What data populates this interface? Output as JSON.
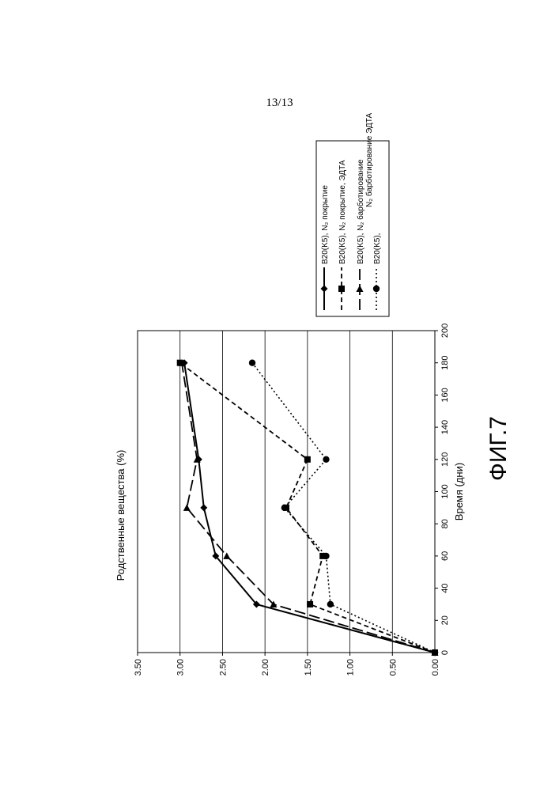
{
  "page_number": "13/13",
  "figure_label": "ФИГ.7",
  "chart_data": {
    "type": "line",
    "title": "",
    "xlabel": "Время (дни)",
    "ylabel": "Родственные вещества  (%)",
    "xlim": [
      0,
      200
    ],
    "ylim": [
      0,
      3.5
    ],
    "x_ticks": [
      "0",
      "20",
      "40",
      "60",
      "80",
      "100",
      "120",
      "140",
      "160",
      "180",
      "200"
    ],
    "y_ticks": [
      "0.00",
      "0.50",
      "1.00",
      "1.50",
      "2.00",
      "2.50",
      "3.00",
      "3.50"
    ],
    "grid": "horizontal",
    "orientation": "rotated 90° counter-clockwise on page",
    "legend_position": "right of plot",
    "series": [
      {
        "name": "B20(K5), N₂ покрытие",
        "line_style": "solid",
        "marker": "diamond",
        "points": [
          [
            0,
            0.0
          ],
          [
            30,
            2.1
          ],
          [
            60,
            2.58
          ],
          [
            90,
            2.72
          ],
          [
            120,
            2.78
          ],
          [
            180,
            2.95
          ]
        ]
      },
      {
        "name": "B20(K5), N₂ покрытие, ЭДТА",
        "line_style": "dashed",
        "marker": "square",
        "points": [
          [
            0,
            0.0
          ],
          [
            30,
            1.47
          ],
          [
            60,
            1.32
          ],
          [
            90,
            1.75
          ],
          [
            120,
            1.5
          ],
          [
            180,
            3.0
          ]
        ]
      },
      {
        "name": "B20(K5), N₂ барботирование",
        "line_style": "long-dash",
        "marker": "triangle",
        "points": [
          [
            0,
            0.0
          ],
          [
            30,
            1.9
          ],
          [
            60,
            2.45
          ],
          [
            90,
            2.92
          ],
          [
            120,
            2.8
          ],
          [
            180,
            2.98
          ]
        ]
      },
      {
        "name": "B20(K5), N₂ барботирование ЭДТА",
        "line_style": "dotted",
        "marker": "circle",
        "points": [
          [
            0,
            0.0
          ],
          [
            30,
            1.23
          ],
          [
            60,
            1.28
          ],
          [
            90,
            1.77
          ],
          [
            120,
            1.28
          ],
          [
            180,
            2.15
          ]
        ]
      }
    ]
  },
  "legend": {
    "entries": [
      {
        "line1": "B20(K5), N₂ покрытие",
        "line2": ""
      },
      {
        "line1": "B20(K5), N₂ покрытие, ЭДТА",
        "line2": ""
      },
      {
        "line1": "B20(K5), N₂ барботирование",
        "line2": ""
      },
      {
        "line1": "B20(K5),",
        "line2": "N₂ барботирование ЭДТА"
      }
    ]
  }
}
